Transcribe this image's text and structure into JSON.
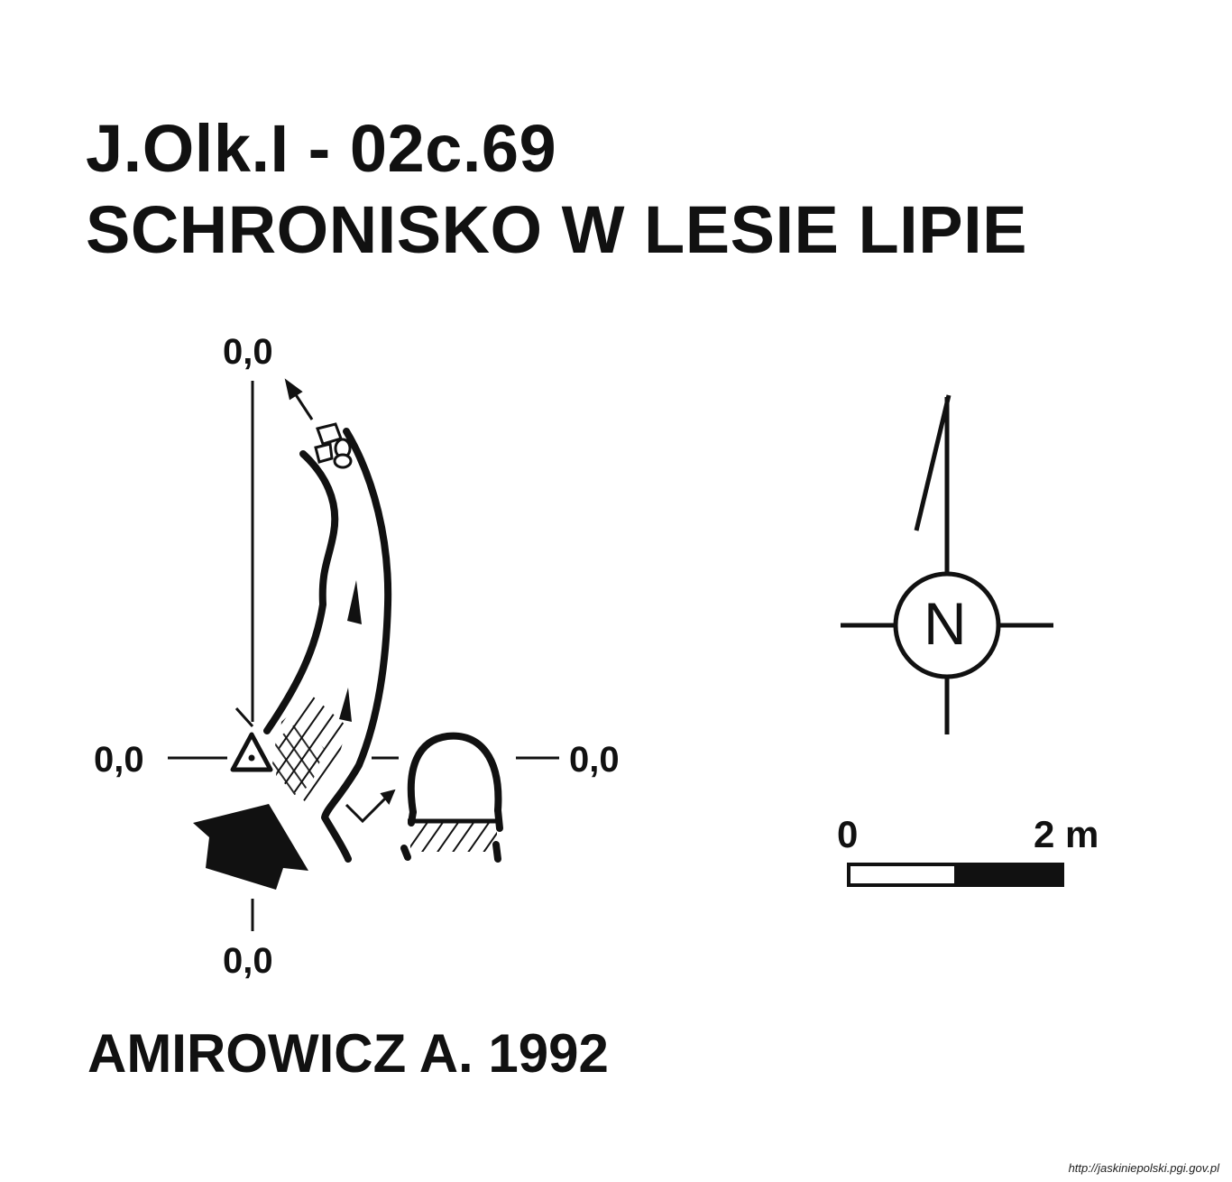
{
  "title": {
    "code": "J.Olk.I - 02c.69",
    "name": "SCHRONISKO W LESIE LIPIE"
  },
  "levels": {
    "top": "0,0",
    "left": "0,0",
    "right": "0,0",
    "bottom": "0,0"
  },
  "compass": {
    "letter": "N",
    "icon": "north-compass-icon"
  },
  "scale_bar": {
    "start_label": "0",
    "end_label": "2 m"
  },
  "author": "AMIROWICZ A. 1992",
  "source_url": "http://jaskiniepolski.pgi.gov.pl",
  "colors": {
    "ink": "#111111",
    "paper": "#ffffff"
  }
}
